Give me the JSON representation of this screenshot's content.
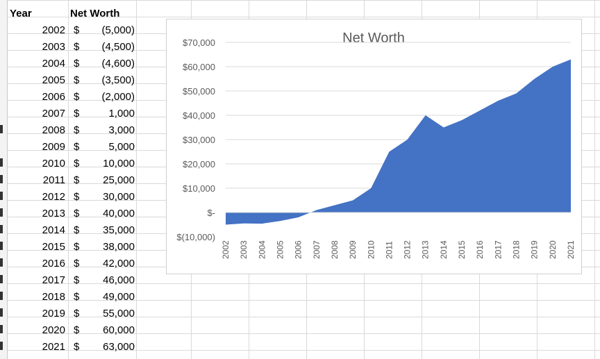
{
  "sheet": {
    "headers": {
      "year": "Year",
      "net_worth": "Net Worth"
    },
    "rows": [
      {
        "year": "2002",
        "currency": "$",
        "amount": "(5,000)"
      },
      {
        "year": "2003",
        "currency": "$",
        "amount": "(4,500)"
      },
      {
        "year": "2004",
        "currency": "$",
        "amount": "(4,600)"
      },
      {
        "year": "2005",
        "currency": "$",
        "amount": "(3,500)"
      },
      {
        "year": "2006",
        "currency": "$",
        "amount": "(2,000)"
      },
      {
        "year": "2007",
        "currency": "$",
        "amount": "1,000"
      },
      {
        "year": "2008",
        "currency": "$",
        "amount": "3,000"
      },
      {
        "year": "2009",
        "currency": "$",
        "amount": "5,000"
      },
      {
        "year": "2010",
        "currency": "$",
        "amount": "10,000"
      },
      {
        "year": "2011",
        "currency": "$",
        "amount": "25,000"
      },
      {
        "year": "2012",
        "currency": "$",
        "amount": "30,000"
      },
      {
        "year": "2013",
        "currency": "$",
        "amount": "40,000"
      },
      {
        "year": "2014",
        "currency": "$",
        "amount": "35,000"
      },
      {
        "year": "2015",
        "currency": "$",
        "amount": "38,000"
      },
      {
        "year": "2016",
        "currency": "$",
        "amount": "42,000"
      },
      {
        "year": "2017",
        "currency": "$",
        "amount": "46,000"
      },
      {
        "year": "2018",
        "currency": "$",
        "amount": "49,000"
      },
      {
        "year": "2019",
        "currency": "$",
        "amount": "55,000"
      },
      {
        "year": "2020",
        "currency": "$",
        "amount": "60,000"
      },
      {
        "year": "2021",
        "currency": "$",
        "amount": "63,000"
      }
    ]
  },
  "chart_data": {
    "type": "area",
    "title": "Net Worth",
    "categories": [
      "2002",
      "2003",
      "2004",
      "2005",
      "2006",
      "2007",
      "2008",
      "2009",
      "2010",
      "2011",
      "2012",
      "2013",
      "2014",
      "2015",
      "2016",
      "2017",
      "2018",
      "2019",
      "2020",
      "2021"
    ],
    "values": [
      -5000,
      -4500,
      -4600,
      -3500,
      -2000,
      1000,
      3000,
      5000,
      10000,
      25000,
      30000,
      40000,
      35000,
      38000,
      42000,
      46000,
      49000,
      55000,
      60000,
      63000
    ],
    "ytick_labels": [
      "$(10,000)",
      "$-",
      "$10,000",
      "$20,000",
      "$30,000",
      "$40,000",
      "$50,000",
      "$60,000",
      "$70,000"
    ],
    "ytick_values": [
      -10000,
      0,
      10000,
      20000,
      30000,
      40000,
      50000,
      60000,
      70000
    ],
    "ylim": [
      -10000,
      70000
    ],
    "grid": true,
    "legend": "none",
    "fill_color": "#4472c4"
  }
}
